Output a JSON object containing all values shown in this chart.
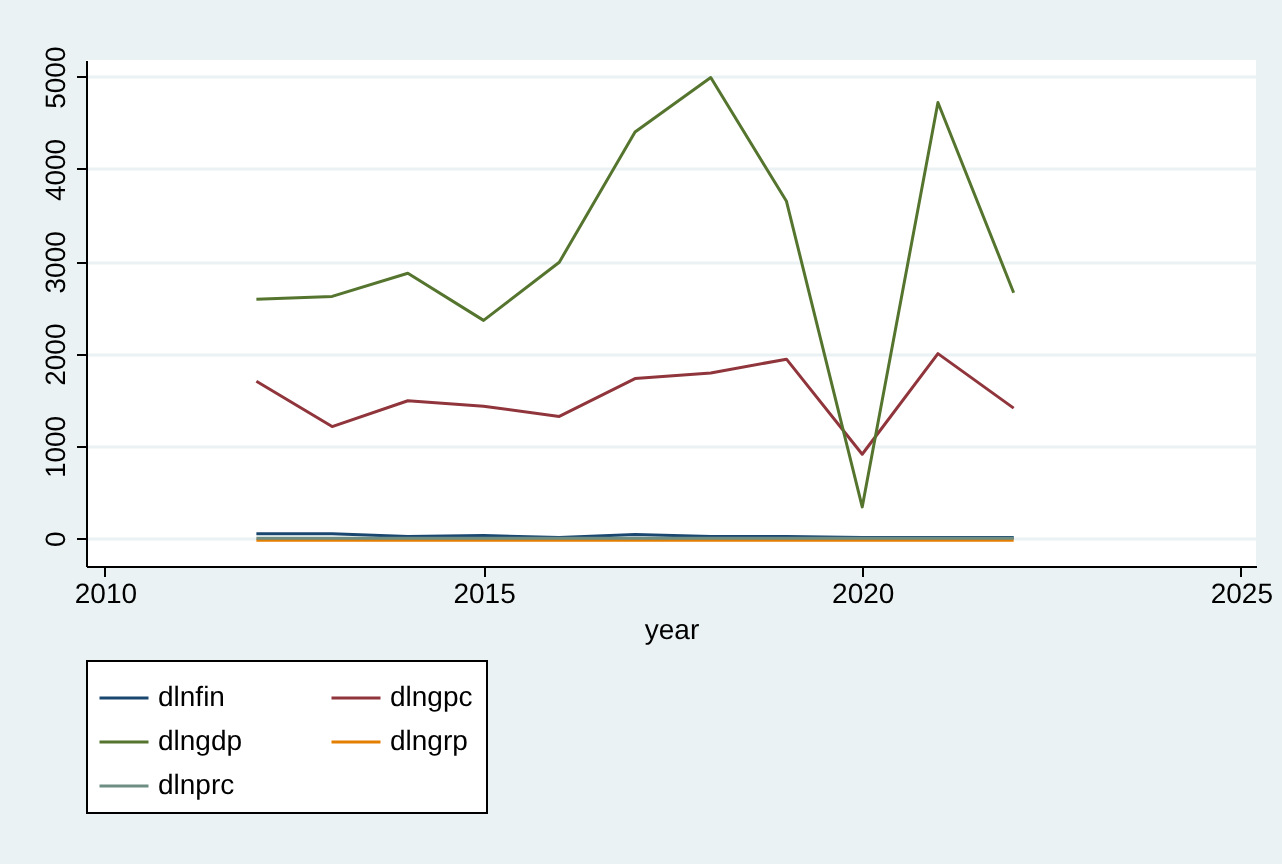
{
  "chart_data": {
    "type": "line",
    "xlabel": "year",
    "x": [
      2012,
      2013,
      2014,
      2015,
      2016,
      2017,
      2018,
      2019,
      2020,
      2021,
      2022
    ],
    "xlim": [
      2009.75,
      2025.2
    ],
    "xticks": [
      2010,
      2015,
      2020,
      2025
    ],
    "ylim": [
      -300,
      5180
    ],
    "yticks": [
      0,
      1000,
      2000,
      3000,
      4000,
      5000
    ],
    "grid": "y",
    "legend": "bottom",
    "line_style": "solid",
    "marker": "none",
    "series": [
      {
        "name": "dlnfin",
        "color": "#1a476f",
        "values": [
          50,
          50,
          20,
          30,
          10,
          40,
          20,
          20,
          10,
          10,
          10
        ]
      },
      {
        "name": "dlngpc",
        "color": "#90353b",
        "values": [
          1700,
          1210,
          1490,
          1430,
          1320,
          1730,
          1790,
          1940,
          910,
          2000,
          1410
        ]
      },
      {
        "name": "dlngdp",
        "color": "#55752f",
        "values": [
          2590,
          2620,
          2870,
          2360,
          2990,
          4400,
          4990,
          3650,
          340,
          4720,
          2660
        ]
      },
      {
        "name": "dlngrp",
        "color": "#e37e00",
        "values": [
          -20,
          -20,
          -20,
          -20,
          -20,
          -20,
          -20,
          -20,
          -20,
          -20,
          -20
        ]
      },
      {
        "name": "dlnprc",
        "color": "#6e8e84",
        "values": [
          0,
          0,
          0,
          0,
          0,
          0,
          0,
          0,
          0,
          0,
          0
        ]
      }
    ]
  }
}
